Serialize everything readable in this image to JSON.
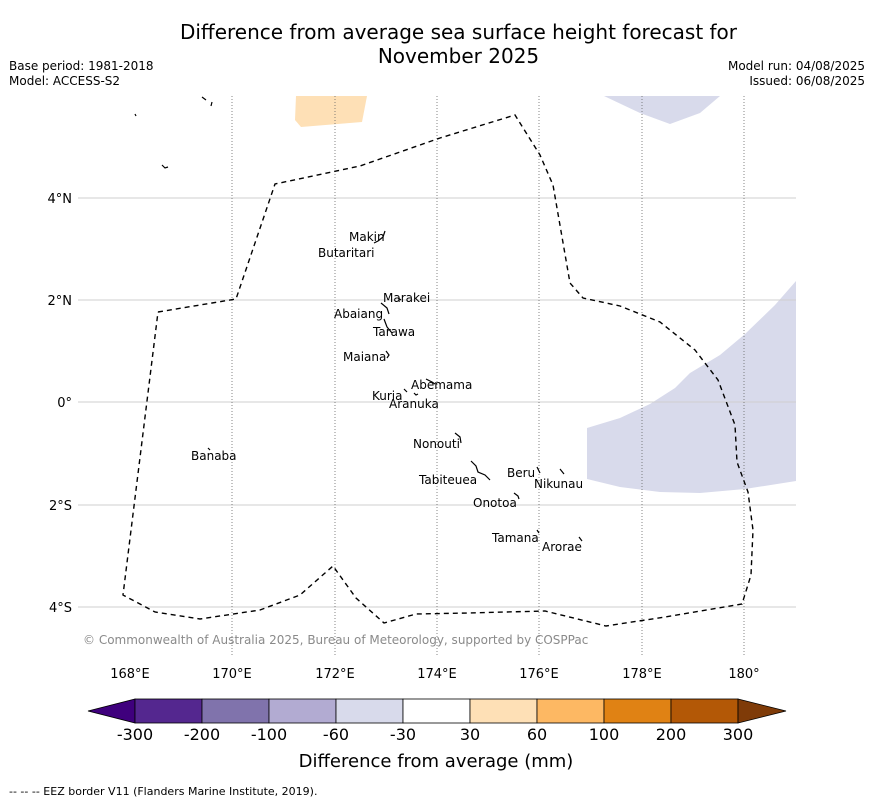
{
  "title_line1": "Difference from average sea surface height forecast for",
  "title_line2": "November 2025",
  "meta_left": [
    "Base period: 1981-2018",
    "Model: ACCESS-S2"
  ],
  "meta_right": [
    "Model run: 04/08/2025",
    "Issued: 06/08/2025"
  ],
  "copyright": "© Commonwealth of Australia 2025, Bureau of Meteorology, supported by COSPPac",
  "x_ticks": [
    "168°E",
    "170°E",
    "172°E",
    "174°E",
    "176°E",
    "178°E",
    "180°"
  ],
  "y_ticks": [
    "4°N",
    "2°N",
    "0°",
    "2°S",
    "4°S"
  ],
  "islands": [
    "Makin",
    "Butaritari",
    "Marakei",
    "Abaiang",
    "Tarawa",
    "Maiana",
    "Abemama",
    "Kuria",
    "Aranuka",
    "Banaba",
    "Nonouti",
    "Beru",
    "Nikunau",
    "Tabiteuea",
    "Onotoa",
    "Tamana",
    "Arorae"
  ],
  "colorbar": {
    "tick_labels": [
      "-300",
      "-200",
      "-100",
      "-60",
      "-30",
      "30",
      "60",
      "100",
      "200",
      "300"
    ],
    "colors": [
      "#3f007d",
      "#54278f",
      "#8073ac",
      "#b2abd2",
      "#d8daeb",
      "#ffffff",
      "#fee0b6",
      "#fdb863",
      "#e08214",
      "#b35806",
      "#7f3b08"
    ],
    "title": "Difference from average (mm)"
  },
  "footer": "--  --  -- EEZ border V11 (Flanders Marine Institute, 2019)."
}
